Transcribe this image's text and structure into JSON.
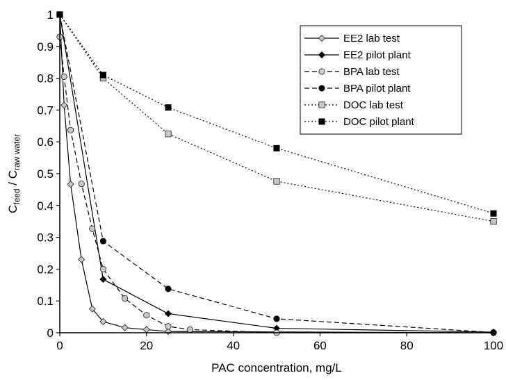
{
  "chart_data": {
    "type": "line",
    "title": "",
    "xlabel": "PAC concentration, mg/L",
    "ylabel": {
      "base1": "C",
      "sub1": "feed",
      "sep": " / C",
      "sub2": "raw water"
    },
    "xlim": [
      0,
      100
    ],
    "ylim": [
      0,
      1
    ],
    "x_ticks": [
      "0",
      "20",
      "40",
      "60",
      "80",
      "100"
    ],
    "y_ticks": [
      "0",
      "0.1",
      "0.2",
      "0.3",
      "0.4",
      "0.5",
      "0.6",
      "0.7",
      "0.8",
      "0.9",
      "1"
    ],
    "grid": false,
    "legend_position": "top-right",
    "series": [
      {
        "name": "EE2 lab test",
        "line": "solid",
        "marker": "diamond",
        "marker_color": "#c8c8c8",
        "points": [
          [
            0,
            1.0
          ],
          [
            1,
            0.715
          ],
          [
            2.5,
            0.467
          ],
          [
            5,
            0.23
          ],
          [
            7.5,
            0.075
          ],
          [
            10,
            0.035
          ],
          [
            15,
            0.016
          ],
          [
            20,
            0.01
          ],
          [
            25,
            0.004
          ],
          [
            100,
            0.0
          ]
        ]
      },
      {
        "name": "EE2 pilot plant",
        "line": "solid",
        "marker": "diamond",
        "marker_color": "#000000",
        "points": [
          [
            0,
            1.0
          ],
          [
            10,
            0.168
          ],
          [
            25,
            0.06
          ],
          [
            50,
            0.014
          ],
          [
            100,
            0.002
          ]
        ]
      },
      {
        "name": "BPA lab test",
        "line": "dashed",
        "marker": "circle",
        "marker_color": "#c8c8c8",
        "points": [
          [
            0,
            0.93
          ],
          [
            1,
            0.805
          ],
          [
            2.5,
            0.637
          ],
          [
            5,
            0.468
          ],
          [
            7.5,
            0.327
          ],
          [
            10,
            0.2
          ],
          [
            15,
            0.108
          ],
          [
            20,
            0.055
          ],
          [
            25,
            0.02
          ],
          [
            30,
            0.01
          ],
          [
            50,
            0.0
          ],
          [
            100,
            0.0
          ]
        ]
      },
      {
        "name": "BPA pilot plant",
        "line": "dashed",
        "marker": "circle",
        "marker_color": "#000000",
        "points": [
          [
            0,
            1.0
          ],
          [
            10,
            0.288
          ],
          [
            25,
            0.138
          ],
          [
            50,
            0.044
          ],
          [
            100,
            0.001
          ]
        ]
      },
      {
        "name": "DOC lab test",
        "line": "dotted",
        "marker": "square",
        "marker_color": "#c8c8c8",
        "points": [
          [
            0,
            1.0
          ],
          [
            10,
            0.8
          ],
          [
            25,
            0.625
          ],
          [
            50,
            0.476
          ],
          [
            100,
            0.35
          ]
        ]
      },
      {
        "name": "DOC pilot plant",
        "line": "dotted",
        "marker": "square",
        "marker_color": "#000000",
        "points": [
          [
            0,
            1.0
          ],
          [
            10,
            0.81
          ],
          [
            25,
            0.708
          ],
          [
            50,
            0.58
          ],
          [
            100,
            0.375
          ]
        ]
      }
    ]
  }
}
